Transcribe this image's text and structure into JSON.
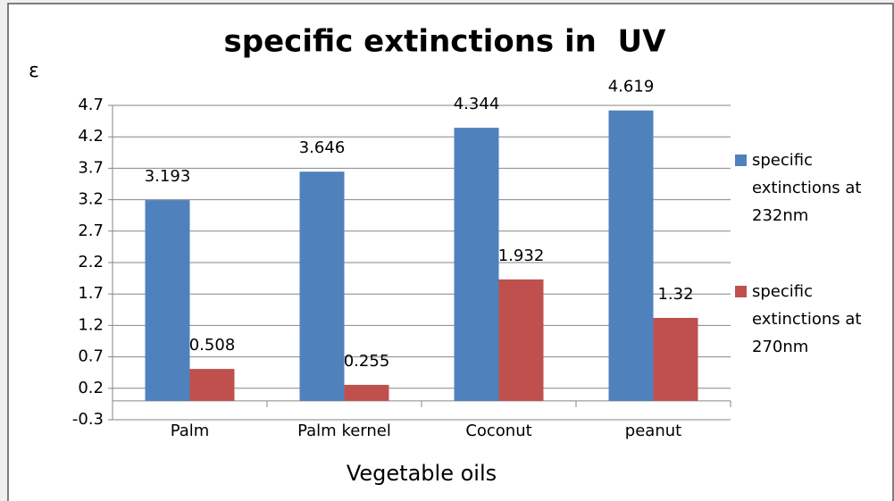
{
  "chart_data": {
    "type": "bar",
    "title": "specific extinctions in  UV",
    "y_label": "ε",
    "x_label": "Vegetable oils",
    "categories": [
      "Palm",
      "Palm kernel",
      "Coconut",
      "peanut"
    ],
    "series": [
      {
        "name": "specific extinctions at 232nm",
        "color": "#4f81bd",
        "values": [
          3.193,
          3.646,
          4.344,
          4.619
        ]
      },
      {
        "name": "specific extinctions at 270nm",
        "color": "#c0504d",
        "values": [
          0.508,
          0.255,
          1.932,
          1.32
        ]
      }
    ],
    "ylim": [
      -0.3,
      4.7
    ],
    "yticks": [
      -0.3,
      0.2,
      0.7,
      1.2,
      1.7,
      2.2,
      2.7,
      3.2,
      3.7,
      4.2,
      4.7
    ],
    "grid": true,
    "legend": "right"
  }
}
